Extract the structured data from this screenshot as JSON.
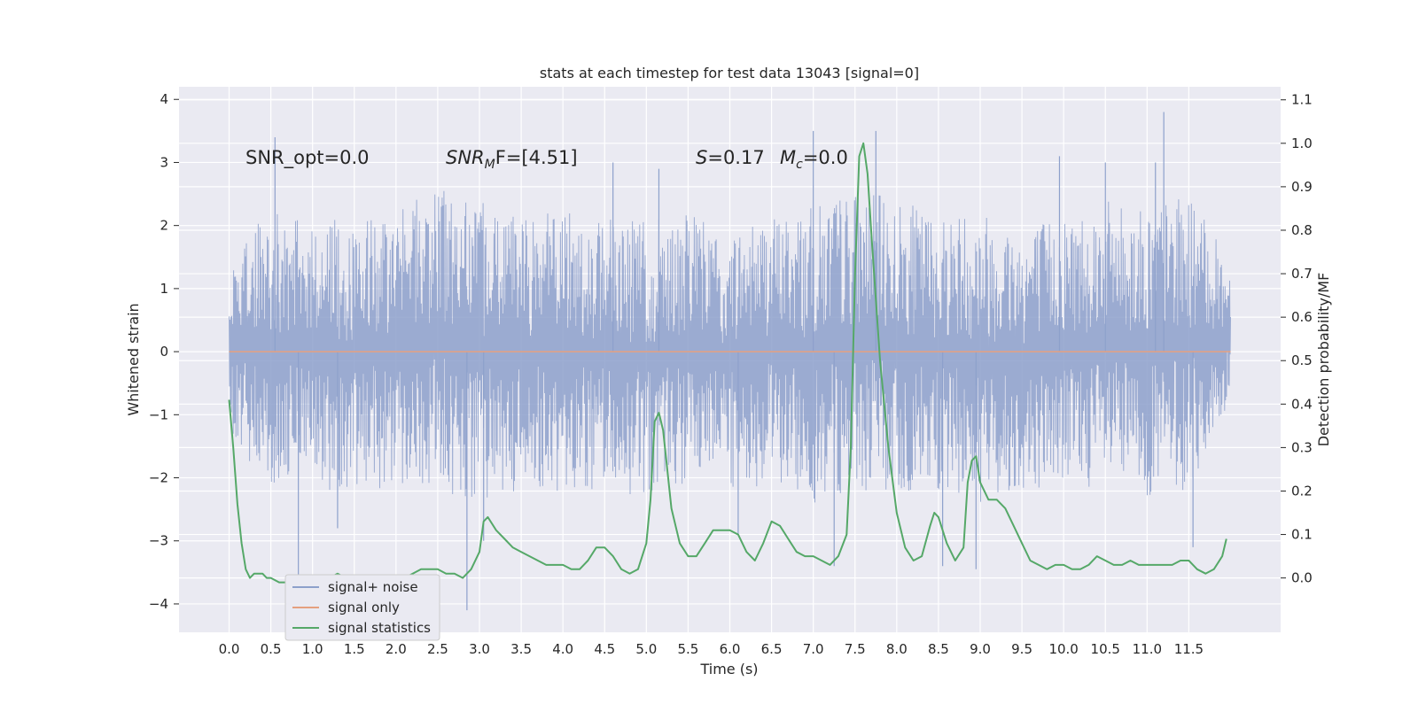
{
  "chart_data": {
    "type": "line",
    "title": "stats at each timestep for test data 13043 [signal=0]",
    "xlabel": "Time (s)",
    "ylabel": "Whitened strain",
    "ylabel_right": "Detection probability/MF",
    "xlim": [
      -0.6,
      12.6
    ],
    "ylim": [
      -4.45,
      4.2
    ],
    "ylim_right": [
      -0.125,
      1.13
    ],
    "x_ticks": [
      0.0,
      0.5,
      1.0,
      1.5,
      2.0,
      2.5,
      3.0,
      3.5,
      4.0,
      4.5,
      5.0,
      5.5,
      6.0,
      6.5,
      7.0,
      7.5,
      8.0,
      8.5,
      9.0,
      9.5,
      10.0,
      10.5,
      11.0,
      11.5
    ],
    "x_tick_labels": [
      "0.0",
      "0.5",
      "1.0",
      "1.5",
      "2.0",
      "2.5",
      "3.0",
      "3.5",
      "4.0",
      "4.5",
      "5.0",
      "5.5",
      "6.0",
      "6.5",
      "7.0",
      "7.5",
      "8.0",
      "8.5",
      "9.0",
      "9.5",
      "10.0",
      "10.5",
      "11.0",
      "11.5"
    ],
    "y_ticks": [
      -4,
      -3,
      -2,
      -1,
      0,
      1,
      2,
      3,
      4
    ],
    "y_tick_labels": [
      "−4",
      "−3",
      "−2",
      "−1",
      "0",
      "1",
      "2",
      "3",
      "4"
    ],
    "y_ticks_right": [
      0.0,
      0.1,
      0.2,
      0.3,
      0.4,
      0.5,
      0.6,
      0.7,
      0.8,
      0.9,
      1.0,
      1.1
    ],
    "y_tick_labels_right": [
      "0.0",
      "0.1",
      "0.2",
      "0.3",
      "0.4",
      "0.5",
      "0.6",
      "0.7",
      "0.8",
      "0.9",
      "1.0",
      "1.1"
    ],
    "grid": true,
    "legend_position": "bottom-left",
    "legend": [
      {
        "name": "signal+ noise",
        "color": "#8da0cb"
      },
      {
        "name": "signal only",
        "color": "#e5a07f"
      },
      {
        "name": "signal statistics",
        "color": "#55a868"
      }
    ],
    "annotations": {
      "snr_opt": "SNR_opt=0.0",
      "snr_mf_main": "SNR",
      "snr_mf_sub": "M",
      "snr_mf_tail": "F=[4.51]",
      "s_main": "S",
      "s_tail": "=0.17",
      "mc_main": "M",
      "mc_sub": "c",
      "mc_tail": "=0.0"
    },
    "series": [
      {
        "name": "signal+ noise",
        "axis": "left",
        "color": "#8da0cb",
        "x_range": [
          0.0,
          12.0
        ],
        "description_range": [
          -4.1,
          3.8
        ],
        "upper_envelope": [
          [
            0.0,
            1.4
          ],
          [
            0.5,
            2.3
          ],
          [
            1.0,
            2.0
          ],
          [
            1.5,
            2.2
          ],
          [
            2.0,
            2.3
          ],
          [
            2.5,
            2.6
          ],
          [
            3.0,
            2.4
          ],
          [
            3.5,
            2.2
          ],
          [
            4.0,
            2.3
          ],
          [
            4.5,
            2.1
          ],
          [
            5.0,
            2.1
          ],
          [
            5.5,
            2.2
          ],
          [
            6.0,
            2.0
          ],
          [
            6.5,
            2.2
          ],
          [
            7.0,
            2.3
          ],
          [
            7.5,
            2.6
          ],
          [
            8.0,
            2.4
          ],
          [
            8.5,
            2.2
          ],
          [
            9.0,
            2.3
          ],
          [
            9.5,
            2.0
          ],
          [
            10.0,
            2.2
          ],
          [
            10.5,
            2.4
          ],
          [
            11.0,
            2.3
          ],
          [
            11.5,
            2.5
          ],
          [
            12.0,
            1.4
          ]
        ],
        "lower_envelope": [
          [
            0.0,
            -1.4
          ],
          [
            0.5,
            -2.1
          ],
          [
            1.0,
            -2.2
          ],
          [
            1.5,
            -2.3
          ],
          [
            2.0,
            -2.1
          ],
          [
            2.5,
            -2.2
          ],
          [
            3.0,
            -2.4
          ],
          [
            3.5,
            -2.3
          ],
          [
            4.0,
            -2.2
          ],
          [
            4.5,
            -2.2
          ],
          [
            5.0,
            -2.3
          ],
          [
            5.5,
            -2.1
          ],
          [
            6.0,
            -2.2
          ],
          [
            6.5,
            -2.1
          ],
          [
            7.0,
            -2.4
          ],
          [
            7.5,
            -2.2
          ],
          [
            8.0,
            -2.3
          ],
          [
            8.5,
            -2.2
          ],
          [
            9.0,
            -2.4
          ],
          [
            9.5,
            -2.2
          ],
          [
            10.0,
            -2.1
          ],
          [
            10.5,
            -2.2
          ],
          [
            11.0,
            -2.3
          ],
          [
            11.5,
            -2.2
          ],
          [
            12.0,
            -1.0
          ]
        ],
        "spikes": [
          [
            0.55,
            3.4
          ],
          [
            0.83,
            -3.6
          ],
          [
            1.3,
            -2.8
          ],
          [
            2.85,
            -4.1
          ],
          [
            3.05,
            -3.0
          ],
          [
            5.15,
            2.9
          ],
          [
            7.0,
            3.5
          ],
          [
            7.25,
            -3.4
          ],
          [
            7.75,
            3.5
          ],
          [
            8.55,
            -3.4
          ],
          [
            8.95,
            -3.45
          ],
          [
            11.2,
            3.8
          ],
          [
            11.1,
            3.0
          ],
          [
            11.55,
            -3.1
          ],
          [
            4.6,
            3.0
          ],
          [
            9.95,
            3.1
          ],
          [
            6.1,
            -2.9
          ],
          [
            10.5,
            3.0
          ]
        ]
      },
      {
        "name": "signal only",
        "axis": "left",
        "color": "#e5a07f",
        "points": [
          [
            0.0,
            0.0
          ],
          [
            12.0,
            0.0
          ]
        ]
      },
      {
        "name": "signal statistics",
        "axis": "right",
        "color": "#55a868",
        "points": [
          [
            0.0,
            0.41
          ],
          [
            0.05,
            0.3
          ],
          [
            0.1,
            0.17
          ],
          [
            0.15,
            0.08
          ],
          [
            0.2,
            0.02
          ],
          [
            0.25,
            0.0
          ],
          [
            0.3,
            0.01
          ],
          [
            0.35,
            0.01
          ],
          [
            0.4,
            0.01
          ],
          [
            0.45,
            0.0
          ],
          [
            0.5,
            0.0
          ],
          [
            0.6,
            -0.01
          ],
          [
            0.7,
            -0.01
          ],
          [
            0.8,
            -0.01
          ],
          [
            0.9,
            0.0
          ],
          [
            1.0,
            -0.01
          ],
          [
            1.1,
            -0.01
          ],
          [
            1.2,
            0.0
          ],
          [
            1.3,
            0.01
          ],
          [
            1.4,
            0.0
          ],
          [
            1.5,
            0.0
          ],
          [
            1.6,
            -0.0
          ],
          [
            1.7,
            0.0
          ],
          [
            1.8,
            -0.0
          ],
          [
            1.9,
            0.0
          ],
          [
            2.0,
            0.0
          ],
          [
            2.1,
            0.0
          ],
          [
            2.2,
            0.01
          ],
          [
            2.3,
            0.02
          ],
          [
            2.4,
            0.02
          ],
          [
            2.5,
            0.02
          ],
          [
            2.6,
            0.01
          ],
          [
            2.7,
            0.01
          ],
          [
            2.8,
            0.0
          ],
          [
            2.9,
            0.02
          ],
          [
            3.0,
            0.06
          ],
          [
            3.05,
            0.13
          ],
          [
            3.1,
            0.14
          ],
          [
            3.2,
            0.11
          ],
          [
            3.3,
            0.09
          ],
          [
            3.4,
            0.07
          ],
          [
            3.5,
            0.06
          ],
          [
            3.6,
            0.05
          ],
          [
            3.7,
            0.04
          ],
          [
            3.8,
            0.03
          ],
          [
            3.9,
            0.03
          ],
          [
            4.0,
            0.03
          ],
          [
            4.1,
            0.02
          ],
          [
            4.2,
            0.02
          ],
          [
            4.3,
            0.04
          ],
          [
            4.4,
            0.07
          ],
          [
            4.5,
            0.07
          ],
          [
            4.6,
            0.05
          ],
          [
            4.7,
            0.02
          ],
          [
            4.8,
            0.01
          ],
          [
            4.9,
            0.02
          ],
          [
            5.0,
            0.08
          ],
          [
            5.05,
            0.18
          ],
          [
            5.1,
            0.36
          ],
          [
            5.15,
            0.38
          ],
          [
            5.2,
            0.34
          ],
          [
            5.3,
            0.16
          ],
          [
            5.4,
            0.08
          ],
          [
            5.5,
            0.05
          ],
          [
            5.6,
            0.05
          ],
          [
            5.7,
            0.08
          ],
          [
            5.8,
            0.11
          ],
          [
            5.9,
            0.11
          ],
          [
            6.0,
            0.11
          ],
          [
            6.1,
            0.1
          ],
          [
            6.2,
            0.06
          ],
          [
            6.3,
            0.04
          ],
          [
            6.4,
            0.08
          ],
          [
            6.5,
            0.13
          ],
          [
            6.6,
            0.12
          ],
          [
            6.7,
            0.09
          ],
          [
            6.8,
            0.06
          ],
          [
            6.9,
            0.05
          ],
          [
            7.0,
            0.05
          ],
          [
            7.1,
            0.04
          ],
          [
            7.2,
            0.03
          ],
          [
            7.3,
            0.05
          ],
          [
            7.4,
            0.1
          ],
          [
            7.45,
            0.3
          ],
          [
            7.5,
            0.7
          ],
          [
            7.55,
            0.97
          ],
          [
            7.6,
            1.0
          ],
          [
            7.65,
            0.93
          ],
          [
            7.7,
            0.78
          ],
          [
            7.8,
            0.5
          ],
          [
            7.9,
            0.3
          ],
          [
            8.0,
            0.15
          ],
          [
            8.1,
            0.07
          ],
          [
            8.2,
            0.04
          ],
          [
            8.3,
            0.05
          ],
          [
            8.4,
            0.12
          ],
          [
            8.45,
            0.15
          ],
          [
            8.5,
            0.14
          ],
          [
            8.6,
            0.08
          ],
          [
            8.7,
            0.04
          ],
          [
            8.8,
            0.07
          ],
          [
            8.85,
            0.22
          ],
          [
            8.9,
            0.27
          ],
          [
            8.95,
            0.28
          ],
          [
            9.0,
            0.22
          ],
          [
            9.1,
            0.18
          ],
          [
            9.2,
            0.18
          ],
          [
            9.3,
            0.16
          ],
          [
            9.4,
            0.12
          ],
          [
            9.5,
            0.08
          ],
          [
            9.6,
            0.04
          ],
          [
            9.7,
            0.03
          ],
          [
            9.8,
            0.02
          ],
          [
            9.9,
            0.03
          ],
          [
            10.0,
            0.03
          ],
          [
            10.1,
            0.02
          ],
          [
            10.2,
            0.02
          ],
          [
            10.3,
            0.03
          ],
          [
            10.4,
            0.05
          ],
          [
            10.5,
            0.04
          ],
          [
            10.6,
            0.03
          ],
          [
            10.7,
            0.03
          ],
          [
            10.8,
            0.04
          ],
          [
            10.9,
            0.03
          ],
          [
            11.0,
            0.03
          ],
          [
            11.1,
            0.03
          ],
          [
            11.2,
            0.03
          ],
          [
            11.3,
            0.03
          ],
          [
            11.4,
            0.04
          ],
          [
            11.5,
            0.04
          ],
          [
            11.6,
            0.02
          ],
          [
            11.7,
            0.01
          ],
          [
            11.8,
            0.02
          ],
          [
            11.9,
            0.05
          ],
          [
            11.95,
            0.09
          ]
        ]
      }
    ]
  }
}
